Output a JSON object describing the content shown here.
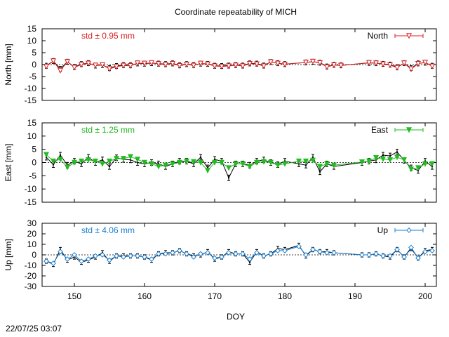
{
  "page_title": "Coordinate repeatability of MICH",
  "x_axis_label": "DOY",
  "footer_timestamp": "22/07/25 03:07",
  "chart_data": [
    {
      "type": "line",
      "ylabel": "North [mm]",
      "ylim": [
        -15,
        15
      ],
      "yticks": [
        -15,
        -10,
        -5,
        0,
        5,
        10,
        15
      ],
      "xlim": [
        145.4,
        201.6
      ],
      "std_label": "std ± 0.95 mm",
      "series_name": "North",
      "color": "#dd2222",
      "marker": "triangle-down-open",
      "black_series": [
        [
          146,
          -0.5
        ],
        [
          147,
          1.5
        ],
        [
          148,
          -1.8
        ],
        [
          149,
          1.2
        ],
        [
          150,
          -1
        ],
        [
          151,
          0.2
        ],
        [
          152,
          0.6
        ],
        [
          153,
          -0.4
        ],
        [
          154,
          -0.2
        ],
        [
          155,
          -1.5
        ],
        [
          156,
          -0.6
        ],
        [
          157,
          -0.2
        ],
        [
          158,
          -0.3
        ],
        [
          159,
          0.5
        ],
        [
          160,
          0.4
        ],
        [
          161,
          0.6
        ],
        [
          162,
          0.4
        ],
        [
          163,
          0.2
        ],
        [
          164,
          0.5
        ],
        [
          165,
          -0.3
        ],
        [
          166,
          0.2
        ],
        [
          167,
          -0.2
        ],
        [
          168,
          0.4
        ],
        [
          169,
          0.3
        ],
        [
          170,
          -0.5
        ],
        [
          171,
          -0.6
        ],
        [
          172,
          -0.4
        ],
        [
          173,
          -0.2
        ],
        [
          174,
          -0.4
        ],
        [
          175,
          0.5
        ],
        [
          176,
          0.4
        ],
        [
          177,
          -0.4
        ],
        [
          178,
          1.1
        ],
        [
          179,
          0.6
        ],
        [
          180,
          0.2
        ],
        [
          183,
          0.9
        ],
        [
          184,
          1.2
        ],
        [
          185,
          0.8
        ],
        [
          186,
          -0.8
        ],
        [
          187,
          -0.1
        ],
        [
          188,
          -0.3
        ],
        [
          192,
          0.7
        ],
        [
          193,
          0.6
        ],
        [
          194,
          0.3
        ],
        [
          195,
          0
        ],
        [
          196,
          -1.1
        ],
        [
          197,
          0.6
        ],
        [
          198,
          -1.5
        ],
        [
          199,
          0.5
        ],
        [
          200,
          0.8
        ],
        [
          201,
          -0.5
        ]
      ],
      "values": [
        [
          146,
          -0.8
        ],
        [
          147,
          1.5
        ],
        [
          148,
          -2.5
        ],
        [
          149,
          1.2
        ],
        [
          150,
          -1.2
        ],
        [
          151,
          0
        ],
        [
          152,
          0.5
        ],
        [
          153,
          -0.3
        ],
        [
          154,
          -0.1
        ],
        [
          155,
          -1.8
        ],
        [
          156,
          -0.9
        ],
        [
          157,
          -0.4
        ],
        [
          158,
          -0.5
        ],
        [
          159,
          0.6
        ],
        [
          160,
          0.5
        ],
        [
          161,
          0.7
        ],
        [
          162,
          0.3
        ],
        [
          163,
          0
        ],
        [
          164,
          0.4
        ],
        [
          165,
          -0.5
        ],
        [
          166,
          0.1
        ],
        [
          167,
          -0.4
        ],
        [
          168,
          0.5
        ],
        [
          169,
          0.2
        ],
        [
          170,
          -0.6
        ],
        [
          171,
          -0.8
        ],
        [
          172,
          -0.6
        ],
        [
          173,
          -0.3
        ],
        [
          174,
          -0.6
        ],
        [
          175,
          0.4
        ],
        [
          176,
          0.2
        ],
        [
          177,
          -0.6
        ],
        [
          178,
          1.1
        ],
        [
          179,
          0.5
        ],
        [
          180,
          0.1
        ],
        [
          183,
          0.9
        ],
        [
          184,
          1.3
        ],
        [
          185,
          0.7
        ],
        [
          186,
          -1
        ],
        [
          187,
          -0.2
        ],
        [
          188,
          -0.4
        ],
        [
          192,
          0.8
        ],
        [
          193,
          0.6
        ],
        [
          194,
          0.2
        ],
        [
          195,
          -0.2
        ],
        [
          196,
          -1.3
        ],
        [
          197,
          0.6
        ],
        [
          198,
          -1.9
        ],
        [
          199,
          0.4
        ],
        [
          200,
          0.9
        ],
        [
          201,
          -0.7
        ]
      ]
    },
    {
      "type": "line",
      "ylabel": "East [mm]",
      "ylim": [
        -15,
        15
      ],
      "yticks": [
        -15,
        -10,
        -5,
        0,
        5,
        10,
        15
      ],
      "xlim": [
        145.4,
        201.6
      ],
      "std_label": "std ± 1.25 mm",
      "series_name": "East",
      "color": "#22bb22",
      "marker": "triangle-down-filled",
      "black_series": [
        [
          146,
          2
        ],
        [
          147,
          -0.8
        ],
        [
          148,
          2.8
        ],
        [
          149,
          -1
        ],
        [
          150,
          0.5
        ],
        [
          151,
          -0.5
        ],
        [
          152,
          2
        ],
        [
          153,
          0
        ],
        [
          154,
          1
        ],
        [
          155,
          -1.5
        ],
        [
          156,
          1.8
        ],
        [
          157,
          1.2
        ],
        [
          158,
          1
        ],
        [
          159,
          0
        ],
        [
          160,
          -0.5
        ],
        [
          161,
          0
        ],
        [
          162,
          -0.5
        ],
        [
          163,
          -1.5
        ],
        [
          164,
          -0.5
        ],
        [
          165,
          0.5
        ],
        [
          166,
          0.5
        ],
        [
          167,
          -0.5
        ],
        [
          168,
          2
        ],
        [
          169,
          -2
        ],
        [
          170,
          1.2
        ],
        [
          171,
          0.5
        ],
        [
          172,
          -5.8
        ],
        [
          173,
          -0.5
        ],
        [
          174,
          -0.5
        ],
        [
          175,
          -1
        ],
        [
          176,
          0.5
        ],
        [
          177,
          1
        ],
        [
          178,
          0
        ],
        [
          179,
          -0.8
        ],
        [
          180,
          0.5
        ],
        [
          182,
          -0.5
        ],
        [
          183,
          -1
        ],
        [
          184,
          2
        ],
        [
          185,
          -3.5
        ],
        [
          186,
          -0.5
        ],
        [
          187,
          -1.5
        ],
        [
          191,
          0
        ],
        [
          192,
          0.5
        ],
        [
          193,
          1
        ],
        [
          194,
          2.8
        ],
        [
          195,
          2.5
        ],
        [
          196,
          4
        ],
        [
          197,
          0.8
        ],
        [
          198,
          -2
        ],
        [
          199,
          -3
        ],
        [
          200,
          0.5
        ],
        [
          201,
          -1.5
        ]
      ],
      "values": [
        [
          146,
          3
        ],
        [
          147,
          0.5
        ],
        [
          148,
          1.2
        ],
        [
          149,
          -1.8
        ],
        [
          150,
          0
        ],
        [
          151,
          0.5
        ],
        [
          152,
          1
        ],
        [
          153,
          0.5
        ],
        [
          154,
          -0.5
        ],
        [
          155,
          0.5
        ],
        [
          156,
          1.5
        ],
        [
          157,
          1.5
        ],
        [
          158,
          2.2
        ],
        [
          159,
          1.2
        ],
        [
          160,
          0
        ],
        [
          161,
          -0.5
        ],
        [
          162,
          -1.5
        ],
        [
          163,
          -1
        ],
        [
          164,
          -0.5
        ],
        [
          165,
          0
        ],
        [
          166,
          0.5
        ],
        [
          167,
          0.3
        ],
        [
          168,
          0
        ],
        [
          169,
          -3
        ],
        [
          170,
          0
        ],
        [
          171,
          0
        ],
        [
          172,
          -2
        ],
        [
          173,
          -0.5
        ],
        [
          174,
          -0.5
        ],
        [
          175,
          -1.5
        ],
        [
          176,
          0
        ],
        [
          177,
          0.3
        ],
        [
          178,
          0
        ],
        [
          179,
          -1
        ],
        [
          180,
          -0.5
        ],
        [
          182,
          0.5
        ],
        [
          183,
          0.5
        ],
        [
          184,
          0.8
        ],
        [
          185,
          -1.5
        ],
        [
          186,
          -0.5
        ],
        [
          187,
          -1
        ],
        [
          191,
          0.2
        ],
        [
          192,
          0.5
        ],
        [
          193,
          1.8
        ],
        [
          194,
          1.3
        ],
        [
          195,
          1
        ],
        [
          196,
          2
        ],
        [
          197,
          1
        ],
        [
          198,
          -2.5
        ],
        [
          199,
          -2
        ],
        [
          200,
          -0.5
        ],
        [
          201,
          -0.5
        ]
      ]
    },
    {
      "type": "line",
      "ylabel": "Up [mm]",
      "ylim": [
        -30,
        30
      ],
      "yticks": [
        -30,
        -20,
        -10,
        0,
        10,
        20,
        30
      ],
      "xlim": [
        145.4,
        201.6
      ],
      "xticks": [
        150,
        160,
        170,
        180,
        190,
        200
      ],
      "std_label": "std ± 4.06 mm",
      "series_name": "Up",
      "color": "#1a7fd0",
      "marker": "diamond-open",
      "black_series": [
        [
          146,
          -6
        ],
        [
          147,
          -9
        ],
        [
          148,
          5
        ],
        [
          149,
          -5
        ],
        [
          150,
          -2
        ],
        [
          151,
          -7
        ],
        [
          152,
          -5
        ],
        [
          153,
          -2
        ],
        [
          154,
          2
        ],
        [
          155,
          -6
        ],
        [
          156,
          -1
        ],
        [
          157,
          -1
        ],
        [
          158,
          -1
        ],
        [
          159,
          -1
        ],
        [
          160,
          -2
        ],
        [
          161,
          -5
        ],
        [
          162,
          1
        ],
        [
          163,
          2
        ],
        [
          164,
          2
        ],
        [
          165,
          4
        ],
        [
          166,
          1
        ],
        [
          167,
          -1
        ],
        [
          168,
          0
        ],
        [
          169,
          3
        ],
        [
          170,
          -4
        ],
        [
          171,
          -2
        ],
        [
          172,
          3
        ],
        [
          173,
          1
        ],
        [
          174,
          1
        ],
        [
          175,
          -7
        ],
        [
          176,
          3
        ],
        [
          177,
          -1
        ],
        [
          178,
          1
        ],
        [
          179,
          6
        ],
        [
          180,
          5
        ],
        [
          182,
          9
        ],
        [
          183,
          -1
        ],
        [
          184,
          5
        ],
        [
          185,
          3
        ],
        [
          186,
          3
        ],
        [
          187,
          2
        ],
        [
          191,
          0
        ],
        [
          192,
          0
        ],
        [
          193,
          1
        ],
        [
          194,
          -1
        ],
        [
          195,
          -2
        ],
        [
          196,
          5
        ],
        [
          197,
          -2
        ],
        [
          198,
          6
        ],
        [
          199,
          -3
        ],
        [
          200,
          4
        ],
        [
          201,
          5
        ]
      ],
      "values": [
        [
          146,
          -6
        ],
        [
          147,
          -8
        ],
        [
          148,
          3
        ],
        [
          149,
          -4
        ],
        [
          150,
          0
        ],
        [
          151,
          -6
        ],
        [
          152,
          -4
        ],
        [
          153,
          -1
        ],
        [
          154,
          0
        ],
        [
          155,
          -5
        ],
        [
          156,
          -1
        ],
        [
          157,
          -2
        ],
        [
          158,
          -1
        ],
        [
          159,
          -1
        ],
        [
          160,
          -2
        ],
        [
          161,
          -4
        ],
        [
          162,
          1
        ],
        [
          163,
          1
        ],
        [
          164,
          2
        ],
        [
          165,
          4
        ],
        [
          166,
          1
        ],
        [
          167,
          -2
        ],
        [
          168,
          1
        ],
        [
          169,
          2
        ],
        [
          170,
          -3
        ],
        [
          171,
          -2
        ],
        [
          172,
          2
        ],
        [
          173,
          1
        ],
        [
          174,
          1
        ],
        [
          175,
          -4
        ],
        [
          176,
          2
        ],
        [
          177,
          -1
        ],
        [
          178,
          1
        ],
        [
          179,
          4
        ],
        [
          180,
          4
        ],
        [
          182,
          8
        ],
        [
          183,
          0
        ],
        [
          184,
          5
        ],
        [
          185,
          3
        ],
        [
          186,
          2
        ],
        [
          187,
          2
        ],
        [
          191,
          0
        ],
        [
          192,
          0
        ],
        [
          193,
          1
        ],
        [
          194,
          -1
        ],
        [
          195,
          -1
        ],
        [
          196,
          5
        ],
        [
          197,
          -2
        ],
        [
          198,
          7
        ],
        [
          199,
          -3
        ],
        [
          200,
          3
        ],
        [
          201,
          4
        ]
      ]
    }
  ]
}
